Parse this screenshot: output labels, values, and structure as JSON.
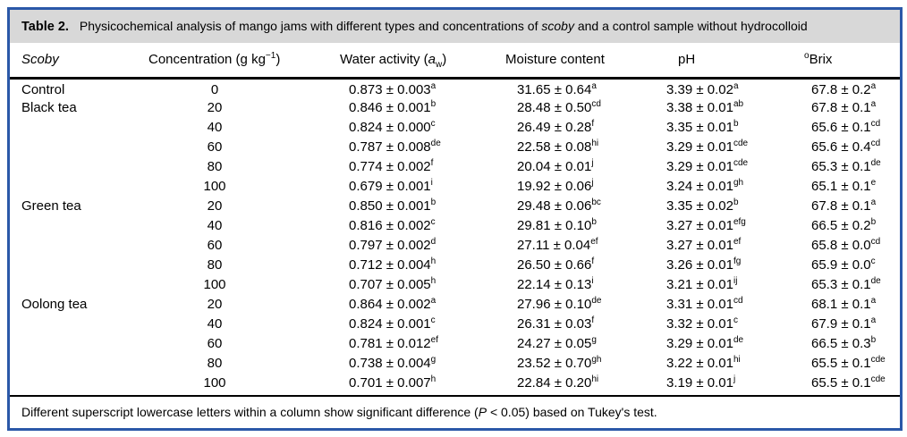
{
  "table": {
    "title": [
      {
        "t": "Table 2.",
        "s": "b"
      },
      {
        "t": "Physicochemical analysis of mango jams with different types and concentrations of ",
        "s": "n"
      },
      {
        "t": "scoby",
        "s": "i"
      },
      {
        "t": " and a control sample without hydrocolloid",
        "s": "n"
      }
    ],
    "headers": [
      [
        {
          "t": "Scoby",
          "s": "n"
        }
      ],
      [
        {
          "t": "Concentration (g kg",
          "s": "n"
        },
        {
          "t": "−1",
          "s": "sup"
        },
        {
          "t": ")",
          "s": "n"
        }
      ],
      [
        {
          "t": "Water activity (",
          "s": "n"
        },
        {
          "t": "a",
          "s": "i"
        },
        {
          "t": "w",
          "s": "sub"
        },
        {
          "t": ")",
          "s": "n"
        }
      ],
      [
        {
          "t": "Moisture content",
          "s": "n"
        }
      ],
      [
        {
          "t": "pH",
          "s": "n"
        }
      ],
      [
        {
          "t": "o",
          "s": "sup"
        },
        {
          "t": "Brix",
          "s": "n"
        }
      ]
    ],
    "rows": [
      {
        "scoby": "Control",
        "conc": "0",
        "aw": {
          "v": "0.873 ± 0.003",
          "s": "a"
        },
        "moisture": {
          "v": "31.65 ± 0.64",
          "s": "a"
        },
        "ph": {
          "v": "3.39 ± 0.02",
          "s": "a"
        },
        "brix": {
          "v": "67.8 ± 0.2",
          "s": "a"
        }
      },
      {
        "scoby": "Black tea",
        "conc": "20",
        "aw": {
          "v": "0.846 ± 0.001",
          "s": "b"
        },
        "moisture": {
          "v": "28.48 ± 0.50",
          "s": "cd"
        },
        "ph": {
          "v": "3.38 ± 0.01",
          "s": "ab"
        },
        "brix": {
          "v": "67.8 ± 0.1",
          "s": "a"
        }
      },
      {
        "scoby": "",
        "conc": "40",
        "aw": {
          "v": "0.824 ± 0.000",
          "s": "c"
        },
        "moisture": {
          "v": "26.49 ± 0.28",
          "s": "f"
        },
        "ph": {
          "v": "3.35 ± 0.01",
          "s": "b"
        },
        "brix": {
          "v": "65.6 ± 0.1",
          "s": "cd"
        }
      },
      {
        "scoby": "",
        "conc": "60",
        "aw": {
          "v": "0.787 ± 0.008",
          "s": "de"
        },
        "moisture": {
          "v": "22.58 ± 0.08",
          "s": "hi"
        },
        "ph": {
          "v": "3.29 ± 0.01",
          "s": "cde"
        },
        "brix": {
          "v": "65.6 ± 0.4",
          "s": "cd"
        }
      },
      {
        "scoby": "",
        "conc": "80",
        "aw": {
          "v": "0.774 ± 0.002",
          "s": "f"
        },
        "moisture": {
          "v": "20.04 ± 0.01",
          "s": "j"
        },
        "ph": {
          "v": "3.29 ± 0.01",
          "s": "cde"
        },
        "brix": {
          "v": "65.3 ± 0.1",
          "s": "de"
        }
      },
      {
        "scoby": "",
        "conc": "100",
        "aw": {
          "v": "0.679 ± 0.001",
          "s": "i"
        },
        "moisture": {
          "v": "19.92 ± 0.06",
          "s": "j"
        },
        "ph": {
          "v": "3.24 ± 0.01",
          "s": "gh"
        },
        "brix": {
          "v": "65.1 ± 0.1",
          "s": "e"
        }
      },
      {
        "scoby": "Green tea",
        "conc": "20",
        "aw": {
          "v": "0.850 ± 0.001",
          "s": "b"
        },
        "moisture": {
          "v": "29.48 ± 0.06",
          "s": "bc"
        },
        "ph": {
          "v": "3.35 ± 0.02",
          "s": "b"
        },
        "brix": {
          "v": "67.8 ± 0.1",
          "s": "a"
        }
      },
      {
        "scoby": "",
        "conc": "40",
        "aw": {
          "v": "0.816 ± 0.002",
          "s": "c"
        },
        "moisture": {
          "v": "29.81 ± 0.10",
          "s": "b"
        },
        "ph": {
          "v": "3.27 ± 0.01",
          "s": "efg"
        },
        "brix": {
          "v": "66.5 ± 0.2",
          "s": "b"
        }
      },
      {
        "scoby": "",
        "conc": "60",
        "aw": {
          "v": "0.797 ± 0.002",
          "s": "d"
        },
        "moisture": {
          "v": "27.11 ± 0.04",
          "s": "ef"
        },
        "ph": {
          "v": "3.27 ± 0.01",
          "s": "ef"
        },
        "brix": {
          "v": "65.8 ± 0.0",
          "s": "cd"
        }
      },
      {
        "scoby": "",
        "conc": "80",
        "aw": {
          "v": "0.712 ± 0.004",
          "s": "h"
        },
        "moisture": {
          "v": "26.50 ± 0.66",
          "s": "f"
        },
        "ph": {
          "v": "3.26 ± 0.01",
          "s": "fg"
        },
        "brix": {
          "v": "65.9 ± 0.0",
          "s": "c"
        }
      },
      {
        "scoby": "",
        "conc": "100",
        "aw": {
          "v": "0.707 ± 0.005",
          "s": "h"
        },
        "moisture": {
          "v": "22.14 ± 0.13",
          "s": "i"
        },
        "ph": {
          "v": "3.21 ± 0.01",
          "s": "ij"
        },
        "brix": {
          "v": "65.3 ± 0.1",
          "s": "de"
        }
      },
      {
        "scoby": "Oolong tea",
        "conc": "20",
        "aw": {
          "v": "0.864 ± 0.002",
          "s": "a"
        },
        "moisture": {
          "v": "27.96 ± 0.10",
          "s": "de"
        },
        "ph": {
          "v": "3.31 ± 0.01",
          "s": "cd"
        },
        "brix": {
          "v": "68.1 ± 0.1",
          "s": "a"
        }
      },
      {
        "scoby": "",
        "conc": "40",
        "aw": {
          "v": "0.824 ± 0.001",
          "s": "c"
        },
        "moisture": {
          "v": "26.31 ± 0.03",
          "s": "f"
        },
        "ph": {
          "v": "3.32 ± 0.01",
          "s": "c"
        },
        "brix": {
          "v": "67.9 ± 0.1",
          "s": "a"
        }
      },
      {
        "scoby": "",
        "conc": "60",
        "aw": {
          "v": "0.781 ± 0.012",
          "s": "ef"
        },
        "moisture": {
          "v": "24.27 ± 0.05",
          "s": "g"
        },
        "ph": {
          "v": "3.29 ± 0.01",
          "s": "de"
        },
        "brix": {
          "v": "66.5 ± 0.3",
          "s": "b"
        }
      },
      {
        "scoby": "",
        "conc": "80",
        "aw": {
          "v": "0.738 ± 0.004",
          "s": "g"
        },
        "moisture": {
          "v": "23.52 ± 0.70",
          "s": "gh"
        },
        "ph": {
          "v": "3.22 ± 0.01",
          "s": "hi"
        },
        "brix": {
          "v": "65.5 ± 0.1",
          "s": "cde"
        }
      },
      {
        "scoby": "",
        "conc": "100",
        "aw": {
          "v": "0.701 ± 0.007",
          "s": "h"
        },
        "moisture": {
          "v": "22.84 ± 0.20",
          "s": "hi"
        },
        "ph": {
          "v": "3.19 ± 0.01",
          "s": "j"
        },
        "brix": {
          "v": "65.5 ± 0.1",
          "s": "cde"
        }
      }
    ],
    "footnote": [
      {
        "t": "Different superscript lowercase letters within a column show significant difference (",
        "s": "n"
      },
      {
        "t": "P",
        "s": "i"
      },
      {
        "t": " < 0.05) based on Tukey's test.",
        "s": "n"
      }
    ],
    "colors": {
      "border_blue": "#2b58a8",
      "title_band_gray": "#d8d8d8",
      "rule_black": "#000000"
    }
  }
}
